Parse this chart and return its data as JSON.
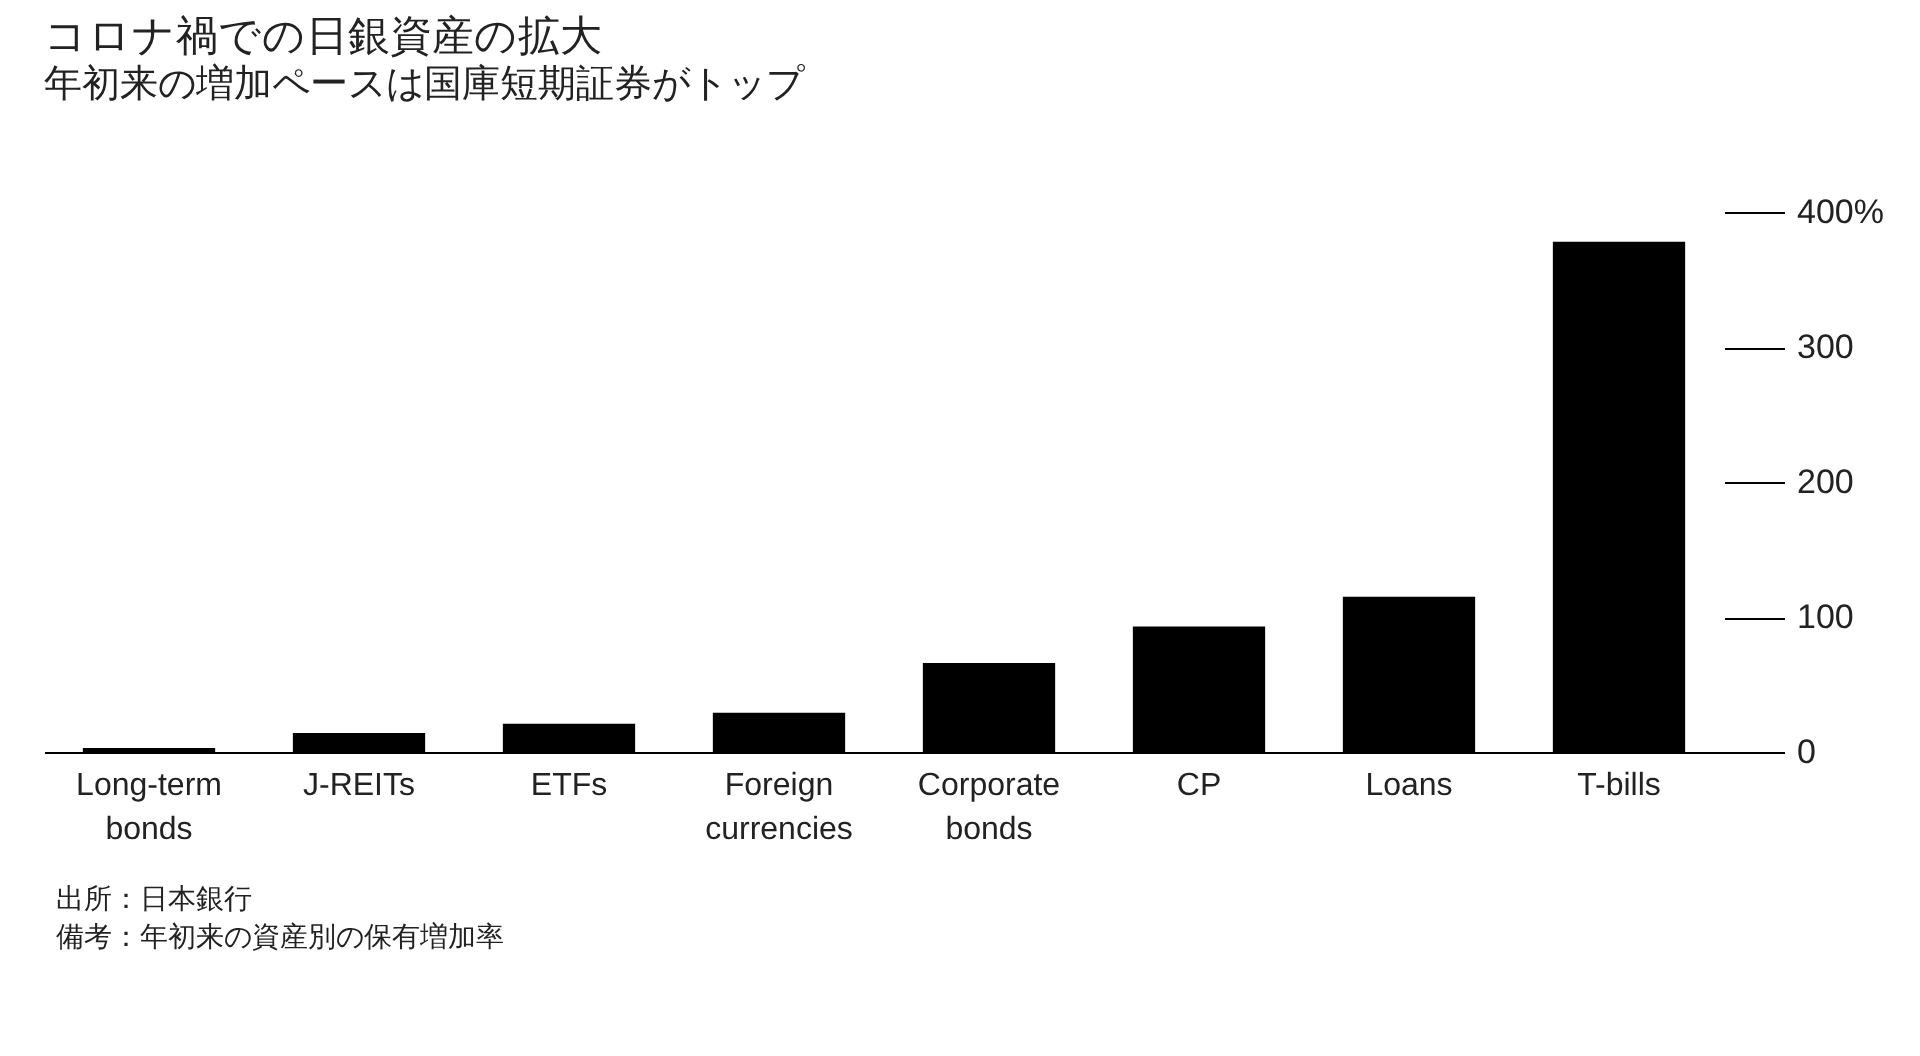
{
  "chart_data": {
    "type": "bar",
    "title": "コロナ禍での日銀資産の拡大",
    "subtitle": "年初来の増加ペースは国庫短期証券がトップ",
    "categories": [
      "Long-term bonds",
      "J-REITs",
      "ETFs",
      "Foreign currencies",
      "Corporate bonds",
      "CP",
      "Loans",
      "T-bills"
    ],
    "values": [
      3,
      14,
      21,
      29,
      66,
      93,
      115,
      378
    ],
    "color": "#000000",
    "ylim": [
      0,
      400
    ],
    "yticks": [
      0,
      100,
      200,
      300,
      {
        "value": 400,
        "label": "400%"
      }
    ],
    "grid": false,
    "annotations": [
      "出所：日本銀行",
      "備考：年初来の資産別の保有増加率"
    ]
  }
}
